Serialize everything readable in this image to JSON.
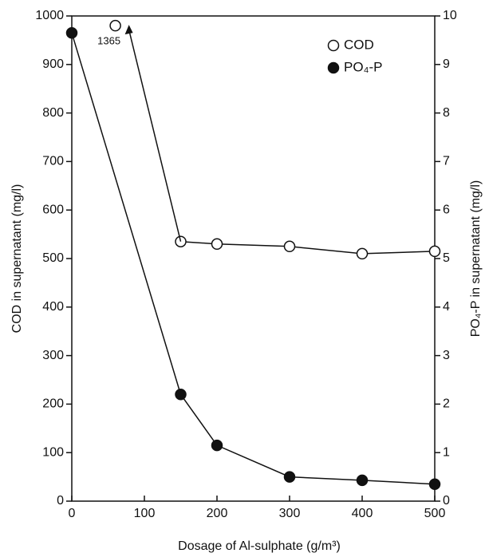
{
  "chart_data": {
    "type": "line",
    "xlabel": "Dosage of Al-sulphate (g/m³)",
    "ylabel": "COD in supernatant (mg/l)",
    "y2label": "PO₄-P in supernatant (mg/l)",
    "xlim": [
      0,
      500
    ],
    "xticks": [
      0,
      100,
      200,
      300,
      400,
      500
    ],
    "ylim": [
      0,
      1000
    ],
    "yticks": [
      0,
      100,
      200,
      300,
      400,
      500,
      600,
      700,
      800,
      900,
      1000
    ],
    "y2lim": [
      0,
      10
    ],
    "y2ticks": [
      0,
      1,
      2,
      3,
      4,
      5,
      6,
      7,
      8,
      9,
      10
    ],
    "grid": false,
    "legend": "upper right",
    "series": [
      {
        "name": "COD",
        "color": "#111111",
        "marker": "open",
        "x": [
          150,
          200,
          300,
          400,
          500
        ],
        "values": [
          535,
          530,
          525,
          510,
          515
        ]
      },
      {
        "name": "PO₄-P",
        "color": "#111111",
        "marker": "filled",
        "axis": "y2",
        "x": [
          0,
          150,
          200,
          300,
          400,
          500
        ],
        "values": [
          9.65,
          2.2,
          1.15,
          0.5,
          0.43,
          0.35
        ]
      }
    ],
    "annotations": [
      {
        "text": "1365",
        "x": 60,
        "y": 980
      }
    ]
  }
}
